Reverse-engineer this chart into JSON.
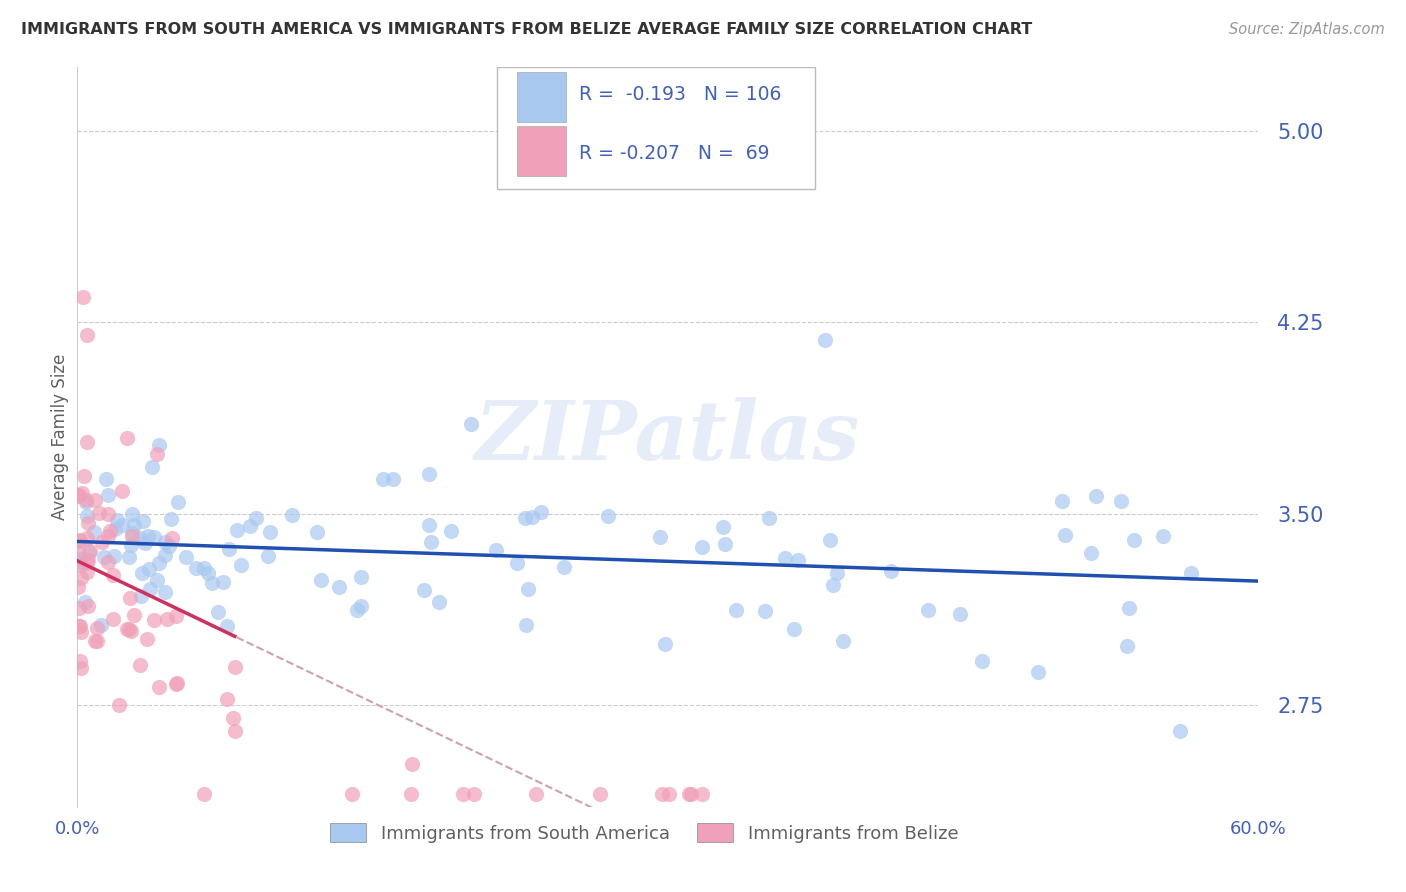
{
  "title": "IMMIGRANTS FROM SOUTH AMERICA VS IMMIGRANTS FROM BELIZE AVERAGE FAMILY SIZE CORRELATION CHART",
  "source": "Source: ZipAtlas.com",
  "ylabel": "Average Family Size",
  "yaxis_ticks": [
    2.75,
    3.5,
    4.25,
    5.0
  ],
  "xmin": 0.0,
  "xmax": 0.6,
  "ymin": 2.35,
  "ymax": 5.25,
  "legend_labels": [
    "Immigrants from South America",
    "Immigrants from Belize"
  ],
  "watermark": "ZIPatlas",
  "blue_scatter_color": "#a8c8f0",
  "pink_scatter_color": "#f0a0b8",
  "blue_line_color": "#2050b0",
  "pink_line_color": "#d03060",
  "dashed_line_color": "#d0a0b0",
  "axis_color": "#4060c0",
  "label_color": "#606060",
  "R1": "-0.193",
  "N1": "106",
  "R2": "-0.207",
  "N2": "69"
}
